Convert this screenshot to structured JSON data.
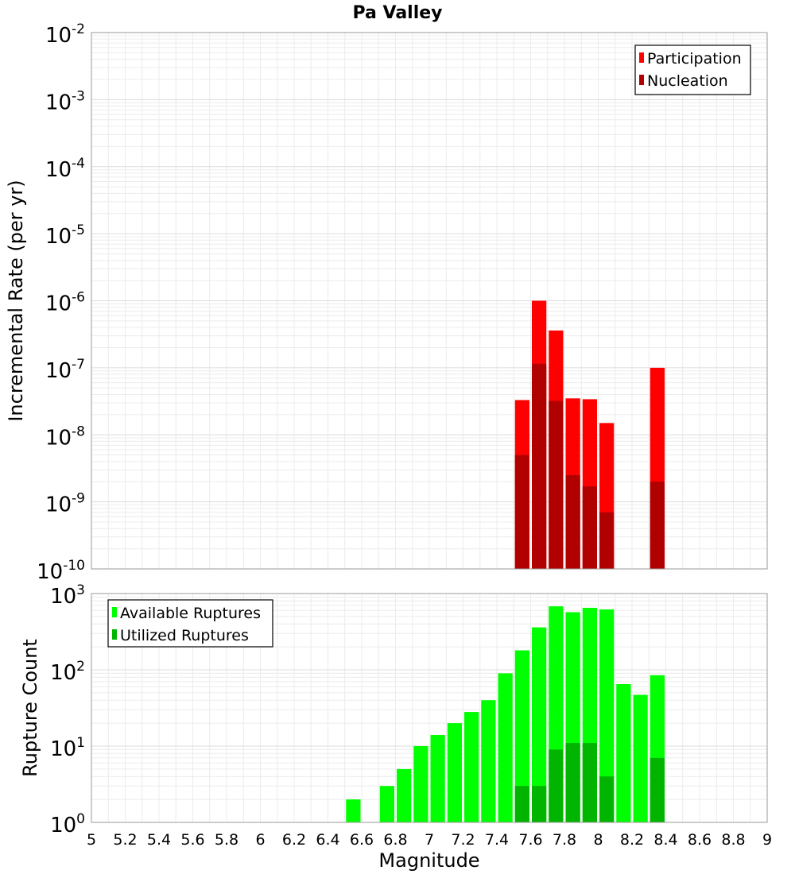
{
  "title": "Pa Valley",
  "chart_data": [
    {
      "type": "bar",
      "title": "Pa Valley",
      "xlabel": "",
      "ylabel": "Incremental Rate (per yr)",
      "yscale": "log",
      "ylim_exponents": [
        -10,
        -2
      ],
      "xlim": [
        5,
        9
      ],
      "bar_width": 0.1,
      "grid": true,
      "legend_position": "top-right",
      "colors": {
        "Participation": "#ff0000",
        "Nucleation": "#b00000"
      },
      "series": [
        {
          "name": "Participation",
          "x": [
            7.55,
            7.65,
            7.75,
            7.85,
            7.95,
            8.05,
            8.35
          ],
          "values": [
            3.3e-08,
            1e-06,
            3.6e-07,
            3.5e-08,
            3.4e-08,
            1.5e-08,
            1e-07
          ]
        },
        {
          "name": "Nucleation",
          "x": [
            7.55,
            7.65,
            7.75,
            7.85,
            7.95,
            8.05,
            8.35
          ],
          "values": [
            5e-09,
            1.15e-07,
            3.2e-08,
            2.5e-09,
            1.7e-09,
            7e-10,
            2e-09
          ]
        }
      ]
    },
    {
      "type": "bar",
      "title": "",
      "xlabel": "Magnitude",
      "ylabel": "Rupture Count",
      "yscale": "log",
      "ylim_exponents": [
        0,
        3
      ],
      "xlim": [
        5,
        9
      ],
      "xticks": [
        "5",
        "5.2",
        "5.4",
        "5.6",
        "5.8",
        "6",
        "6.2",
        "6.4",
        "6.6",
        "6.8",
        "7",
        "7.2",
        "7.4",
        "7.6",
        "7.8",
        "8",
        "8.2",
        "8.4",
        "8.6",
        "8.8",
        "9"
      ],
      "bar_width": 0.1,
      "grid": true,
      "legend_position": "top-left",
      "colors": {
        "Available Ruptures": "#00ff00",
        "Utilized Ruptures": "#00b400"
      },
      "series": [
        {
          "name": "Available Ruptures",
          "x": [
            6.55,
            6.75,
            6.85,
            6.95,
            7.05,
            7.15,
            7.25,
            7.35,
            7.45,
            7.55,
            7.65,
            7.75,
            7.85,
            7.95,
            8.05,
            8.15,
            8.25,
            8.35,
            8.45
          ],
          "values": [
            2,
            3,
            5,
            10,
            14,
            20,
            28,
            40,
            90,
            180,
            360,
            680,
            570,
            650,
            620,
            65,
            47,
            85,
            1
          ]
        },
        {
          "name": "Utilized Ruptures",
          "x": [
            7.55,
            7.65,
            7.75,
            7.85,
            7.95,
            8.05,
            8.35
          ],
          "values": [
            3,
            3,
            9,
            11,
            11,
            4,
            7
          ]
        }
      ]
    }
  ]
}
